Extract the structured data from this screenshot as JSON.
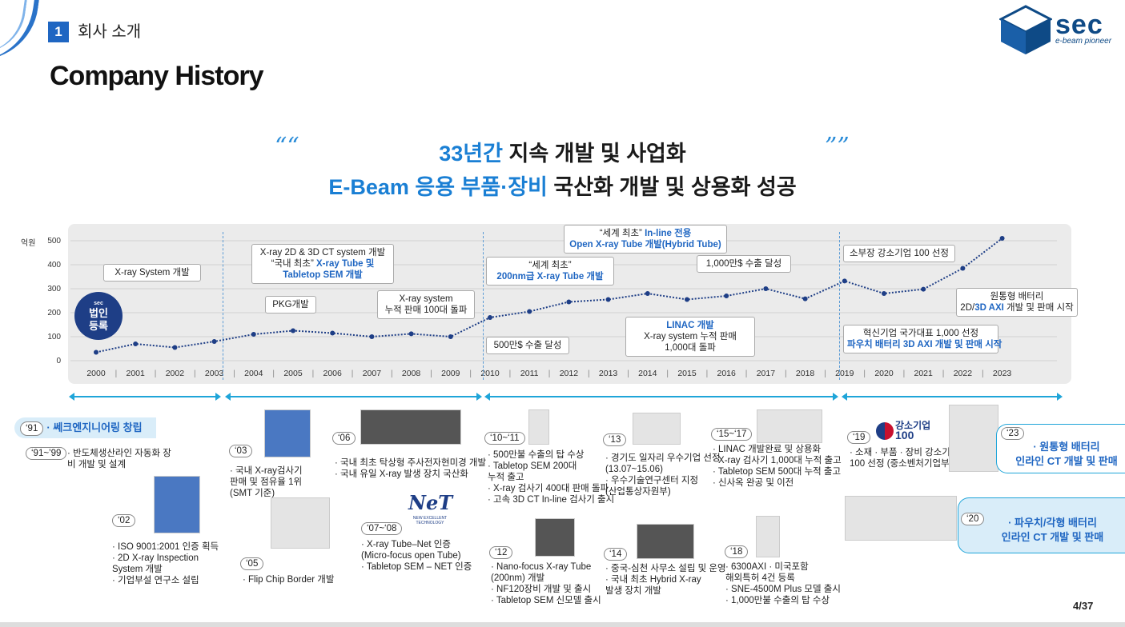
{
  "header": {
    "section_number": "1",
    "section_title": "회사 소개",
    "page_title": "Company History",
    "logo_word": "sec",
    "logo_tagline": "e-beam pioneer"
  },
  "headline": {
    "line1_highlight": "33년간",
    "line1_rest": " 지속 개발 및 사업화",
    "line2_highlight": "E-Beam 응용 부품·장비",
    "line2_rest": " 국산화 개발 및 상용화 성공",
    "open_quote": "““",
    "close_quote": "””"
  },
  "chart_data": {
    "type": "line",
    "ylabel": "억원",
    "ylim": [
      0,
      500
    ],
    "yticks": [
      "500",
      "400",
      "300",
      "200",
      "100",
      "0"
    ],
    "x": [
      "2000",
      "2001",
      "2002",
      "2003",
      "2004",
      "2005",
      "2006",
      "2007",
      "2008",
      "2009",
      "2010",
      "2011",
      "2012",
      "2013",
      "2014",
      "2015",
      "2016",
      "2017",
      "2018",
      "2019",
      "2020",
      "2021",
      "2022",
      "2023"
    ],
    "values": [
      35,
      70,
      55,
      80,
      110,
      125,
      115,
      100,
      112,
      100,
      180,
      205,
      245,
      255,
      280,
      255,
      270,
      300,
      258,
      332,
      280,
      298,
      385,
      510
    ],
    "line_color": "#1e3e86"
  },
  "badge": {
    "mini": "sec",
    "line1": "법인",
    "line2": "등록"
  },
  "callouts": [
    {
      "l1": "X-ray System 개발"
    },
    {
      "l1": "PKG개발"
    },
    {
      "l1": "X-ray 2D & 3D CT system 개발",
      "l2a": "“국내 최초” ",
      "l2b": "X-ray Tube 및",
      "l3b": "Tabletop SEM 개발"
    },
    {
      "l1": "X-ray system",
      "l2": "누적 판매 100대 돌파"
    },
    {
      "l1": "500만$ 수출 달성"
    },
    {
      "l1": "“세계 최초”",
      "l2b": "200nm급 X-ray Tube 개발"
    },
    {
      "l1a": "“세계 최초” ",
      "l1b": "In-line 전용",
      "l2b": "Open X-ray Tube 개발(Hybrid Tube)"
    },
    {
      "l1b": "LINAC 개발",
      "l2": "X-ray system  누적 판매",
      "l3": "1,000대 돌파"
    },
    {
      "l1": "1,000만$ 수출 달성"
    },
    {
      "l1": "소부장 강소기업 100 선정"
    },
    {
      "l1": "혁신기업 국가대표 1,000 선정",
      "l2b": "파우치 배터리 3D AXI 개발 및 판매 시작"
    },
    {
      "l1": "원통형 배터리",
      "l2b": "3D AXI",
      "l2a": "2D/",
      "l2c": " 개발 및 판매 시작"
    }
  ],
  "milestones": {
    "y91": {
      "year": "‘91",
      "title": "· 쎄크엔지니어링 창립"
    },
    "y91_99": {
      "year": "‘91~’99",
      "l1": "· 반도체생산라인 자동화 장",
      "l2": "  비 개발 및 설계"
    },
    "y02": {
      "year": "‘02",
      "l1": "· ISO 9001:2001 인증 획득",
      "l2": "· 2D X-ray Inspection",
      "l3": "  System 개발",
      "l4": "· 기업부설 연구소 설립"
    },
    "y03": {
      "year": "‘03",
      "l1": "· 국내 X-ray검사기",
      "l2": "  판매 및 점유율 1위",
      "l3": "  (SMT 기준)"
    },
    "y05": {
      "year": "‘05",
      "l1": "· Flip Chip Border 개발"
    },
    "y06": {
      "year": "‘06",
      "l1": "· 국내 최초 탁상형 주사전자현미경 개발",
      "l2": "· 국내 유일 X-ray 발생 장치 국산화"
    },
    "y07_08": {
      "year": "‘07~‘08",
      "l1": "· X-ray Tube–Net 인증",
      "l2": "  (Micro-focus open Tube)",
      "l3": "· Tabletop SEM – NET 인증"
    },
    "y10_11": {
      "year": "‘10~‘11",
      "l1": "· 500만불 수출의 탑 수상",
      "l2": "· Tabletop SEM 200대",
      "l3": "  누적 출고",
      "l4": "· X-ray 검사기 400대 판매 돌파",
      "l5": "· 고속 3D CT In-line 검사기 출시"
    },
    "y12": {
      "year": "‘12",
      "l1": "· Nano-focus X-ray Tube",
      "l2": "  (200nm) 개발",
      "l3": "· NF120장비 개발 및 출시",
      "l4": "· Tabletop SEM 신모델 출시"
    },
    "y13": {
      "year": "‘13",
      "l1": "· 경기도 일자리 우수기업 선정",
      "l2": "  (13.07~15.06)",
      "l3": "· 우수기술연구센터 지정",
      "l4": "  (산업통상자원부)"
    },
    "y14": {
      "year": "‘14",
      "l1": "· 중국-심천 사무소 설립 및 운영",
      "l2": "· 국내 최초 Hybrid X-ray",
      "l3": "  발생 장치 개발"
    },
    "y15_17": {
      "year": "‘15~‘17",
      "l1": "· LINAC 개발완료 및 상용화",
      "l2": "· X-ray 검사기 1,000대 누적 출고",
      "l3": "· Tabletop SEM 500대 누적 출고",
      "l4": "· 신사옥 완공 및 이전"
    },
    "y18": {
      "year": "‘18",
      "l1": "· 6300AXI · 미국포함",
      "l2": "  해외특허 4건 등록",
      "l3": "· SNE-4500M Plus 모델 출시",
      "l4": "· 1,000만불 수출의 탑 수상"
    },
    "y19": {
      "year": "‘19",
      "l1": "· 소재 · 부품 · 장비 강소기업",
      "l2": "  100 선정 (중소벤처기업부)"
    },
    "y23": {
      "year": "‘23",
      "l1": "· 원통형 배터리",
      "l2": "인라인 CT 개발 및 판매"
    },
    "y20": {
      "year": "‘20",
      "l1": "· 파우치/각형 배터리",
      "l2": "인라인 CT 개발 및 판매"
    }
  },
  "logos": {
    "net_logo": "NeT",
    "net_logo_sub": "NEW EXCELLENT TECHNOLOGY",
    "strong100": "강소기업",
    "strong100_num": "100"
  },
  "page_number": "4/37"
}
